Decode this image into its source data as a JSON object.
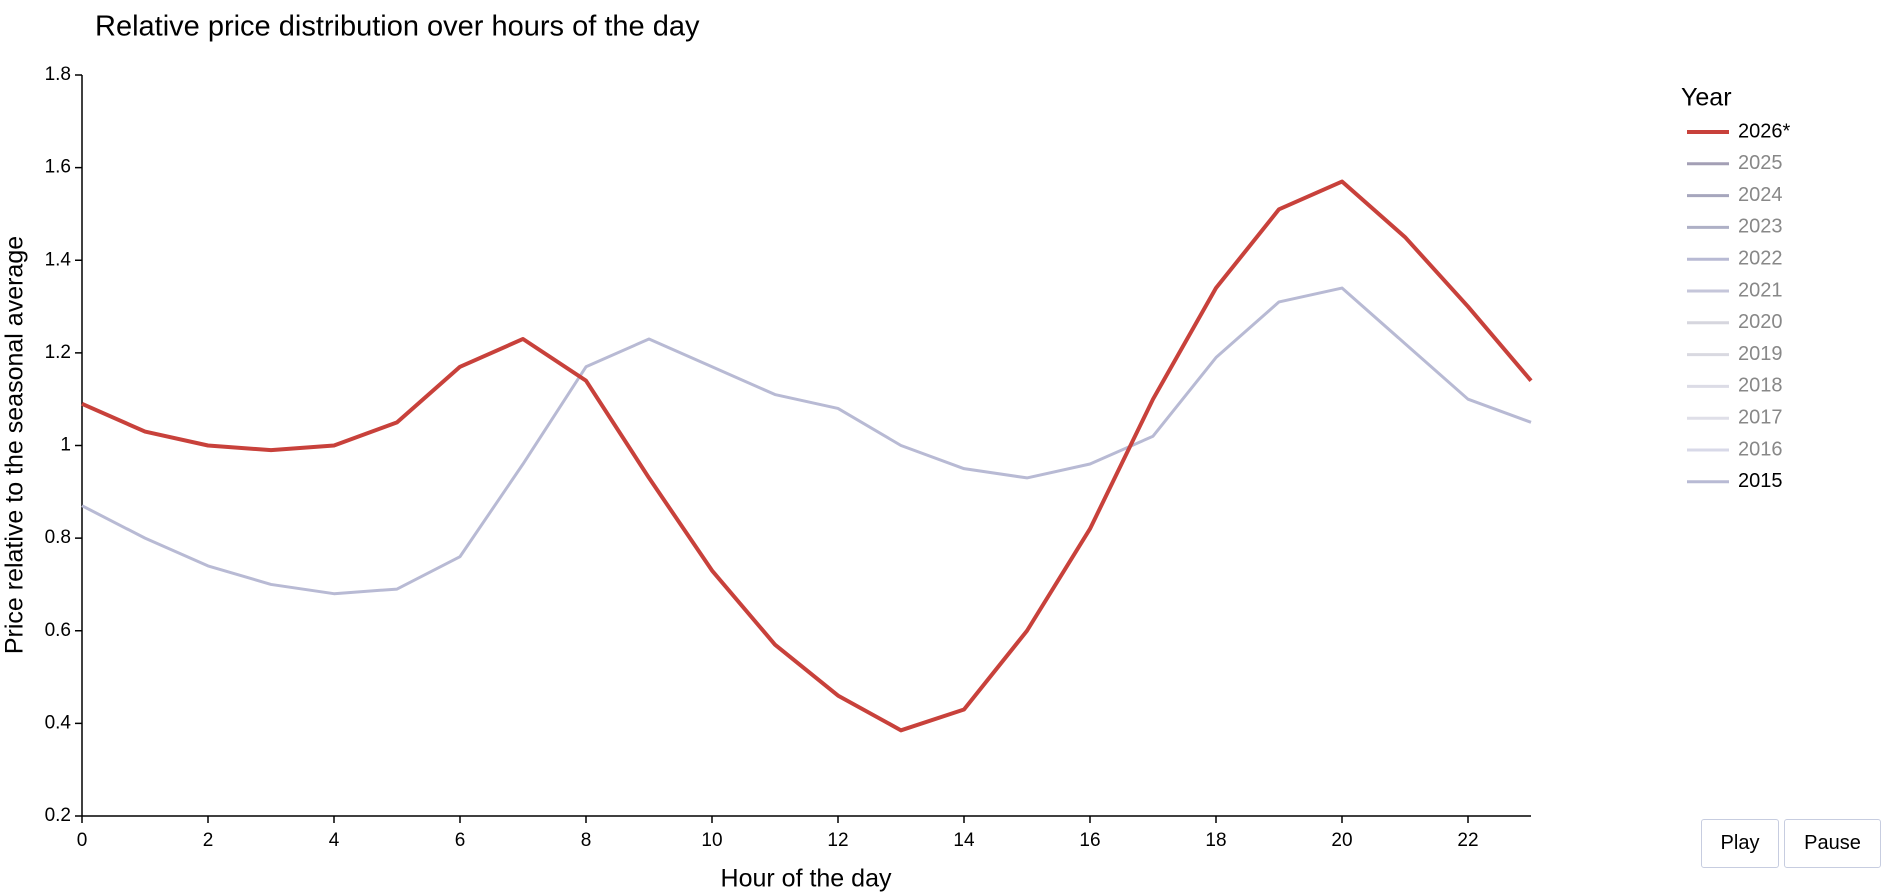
{
  "chart_data": {
    "type": "line",
    "title": "Relative price distribution over hours of the day",
    "x_label": "Hour of the day",
    "y_label": "Price relative to the seasonal average",
    "legend_title": "Year",
    "x": [
      0,
      1,
      2,
      3,
      4,
      5,
      6,
      7,
      8,
      9,
      10,
      11,
      12,
      13,
      14,
      15,
      16,
      17,
      18,
      19,
      20,
      21,
      22,
      23
    ],
    "xlim": [
      0,
      23
    ],
    "xticks": [
      0,
      2,
      4,
      6,
      8,
      10,
      12,
      14,
      16,
      18,
      20,
      22
    ],
    "ylim": [
      0.2,
      1.8
    ],
    "yticks": [
      0.2,
      0.4,
      0.6,
      0.8,
      1,
      1.2,
      1.4,
      1.6,
      1.8
    ],
    "series": [
      {
        "name": "2026*",
        "color": "#c8413b",
        "visible": true,
        "values": [
          1.09,
          1.03,
          1.0,
          0.99,
          1.0,
          1.05,
          1.17,
          1.23,
          1.14,
          0.93,
          0.73,
          0.57,
          0.46,
          0.385,
          0.43,
          0.6,
          0.82,
          1.1,
          1.34,
          1.51,
          1.57,
          1.45,
          1.3,
          1.14
        ]
      },
      {
        "name": "2025",
        "color": "#a39fb5",
        "visible": false
      },
      {
        "name": "2024",
        "color": "#a6a6bd",
        "visible": false
      },
      {
        "name": "2023",
        "color": "#aeb0c6",
        "visible": false
      },
      {
        "name": "2022",
        "color": "#b8bad4",
        "visible": false
      },
      {
        "name": "2021",
        "color": "#c5c6da",
        "visible": false
      },
      {
        "name": "2020",
        "color": "#d6d6de",
        "visible": false
      },
      {
        "name": "2019",
        "color": "#d9d9e1",
        "visible": false
      },
      {
        "name": "2018",
        "color": "#dcdce6",
        "visible": false
      },
      {
        "name": "2017",
        "color": "#dfdfe8",
        "visible": false
      },
      {
        "name": "2016",
        "color": "#d8d9e8",
        "visible": false
      },
      {
        "name": "2015",
        "color": "#b8bad4",
        "visible": true,
        "values": [
          0.87,
          0.8,
          0.74,
          0.7,
          0.68,
          0.69,
          0.76,
          0.96,
          1.17,
          1.23,
          1.17,
          1.11,
          1.08,
          1.0,
          0.95,
          0.93,
          0.96,
          1.02,
          1.19,
          1.31,
          1.34,
          1.22,
          1.1,
          1.05
        ]
      }
    ],
    "controls": [
      "Play",
      "Pause"
    ]
  }
}
